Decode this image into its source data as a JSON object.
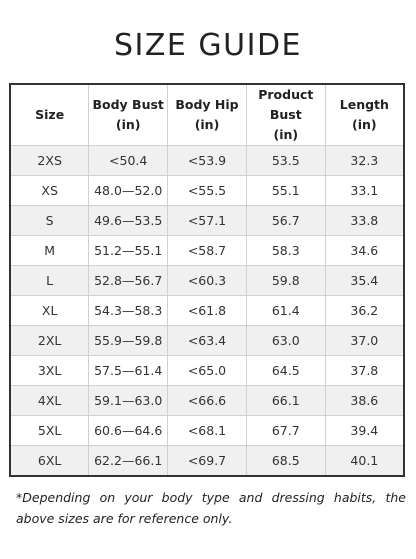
{
  "title": "SIZE GUIDE",
  "table": {
    "headers": [
      {
        "line1": "Size",
        "line2": ""
      },
      {
        "line1": "Body Bust",
        "line2": "(in)"
      },
      {
        "line1": "Body Hip",
        "line2": "(in)"
      },
      {
        "line1": "Product Bust",
        "line2": "(in)"
      },
      {
        "line1": "Length",
        "line2": "(in)"
      }
    ],
    "rows": [
      [
        "2XS",
        "<50.4",
        "<53.9",
        "53.5",
        "32.3"
      ],
      [
        "XS",
        "48.0—52.0",
        "<55.5",
        "55.1",
        "33.1"
      ],
      [
        "S",
        "49.6—53.5",
        "<57.1",
        "56.7",
        "33.8"
      ],
      [
        "M",
        "51.2—55.1",
        "<58.7",
        "58.3",
        "34.6"
      ],
      [
        "L",
        "52.8—56.7",
        "<60.3",
        "59.8",
        "35.4"
      ],
      [
        "XL",
        "54.3—58.3",
        "<61.8",
        "61.4",
        "36.2"
      ],
      [
        "2XL",
        "55.9—59.8",
        "<63.4",
        "63.0",
        "37.0"
      ],
      [
        "3XL",
        "57.5—61.4",
        "<65.0",
        "64.5",
        "37.8"
      ],
      [
        "4XL",
        "59.1—63.0",
        "<66.6",
        "66.1",
        "38.6"
      ],
      [
        "5XL",
        "60.6—64.6",
        "<68.1",
        "67.7",
        "39.4"
      ],
      [
        "6XL",
        "62.2—66.1",
        "<69.7",
        "68.5",
        "40.1"
      ]
    ]
  },
  "note": "*Depending on your body type and dressing habits, the above sizes are for reference only."
}
